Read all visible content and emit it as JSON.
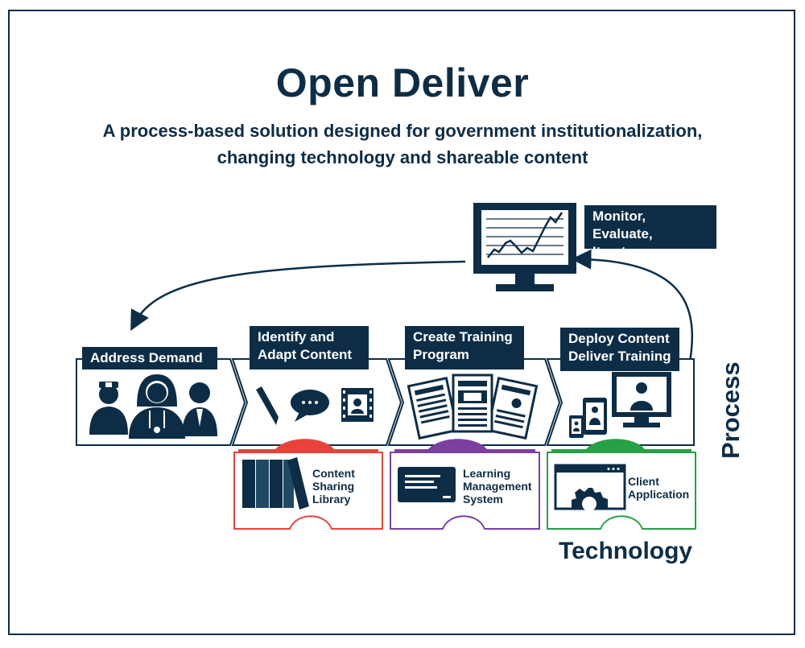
{
  "title": "Open Deliver",
  "subtitle": {
    "line1": "A process-based solution designed for government institutionalization,",
    "line2": "changing technology and shareable content"
  },
  "monitor": {
    "label_line1": "Monitor, Evaluate,",
    "label_line2": "Iterate"
  },
  "process_steps": [
    {
      "label_line1": "Address Demand",
      "label_line2": ""
    },
    {
      "label_line1": "Identify and",
      "label_line2": "Adapt Content"
    },
    {
      "label_line1": "Create Training",
      "label_line2": "Program"
    },
    {
      "label_line1": "Deploy Content",
      "label_line2": "Deliver Training"
    }
  ],
  "technology_pieces": [
    {
      "line1": "Content",
      "line2": "Sharing",
      "line3": "Library",
      "color": "#e8433a"
    },
    {
      "line1": "Learning",
      "line2": "Management",
      "line3": "System",
      "color": "#7b3fa0"
    },
    {
      "line1": "Client",
      "line2": "Application",
      "line3": "",
      "color": "#27a046"
    }
  ],
  "axis_labels": {
    "process": "Process",
    "technology": "Technology"
  },
  "colors": {
    "navy": "#0d2d47",
    "red": "#e8433a",
    "purple": "#7b3fa0",
    "green": "#27a046"
  }
}
